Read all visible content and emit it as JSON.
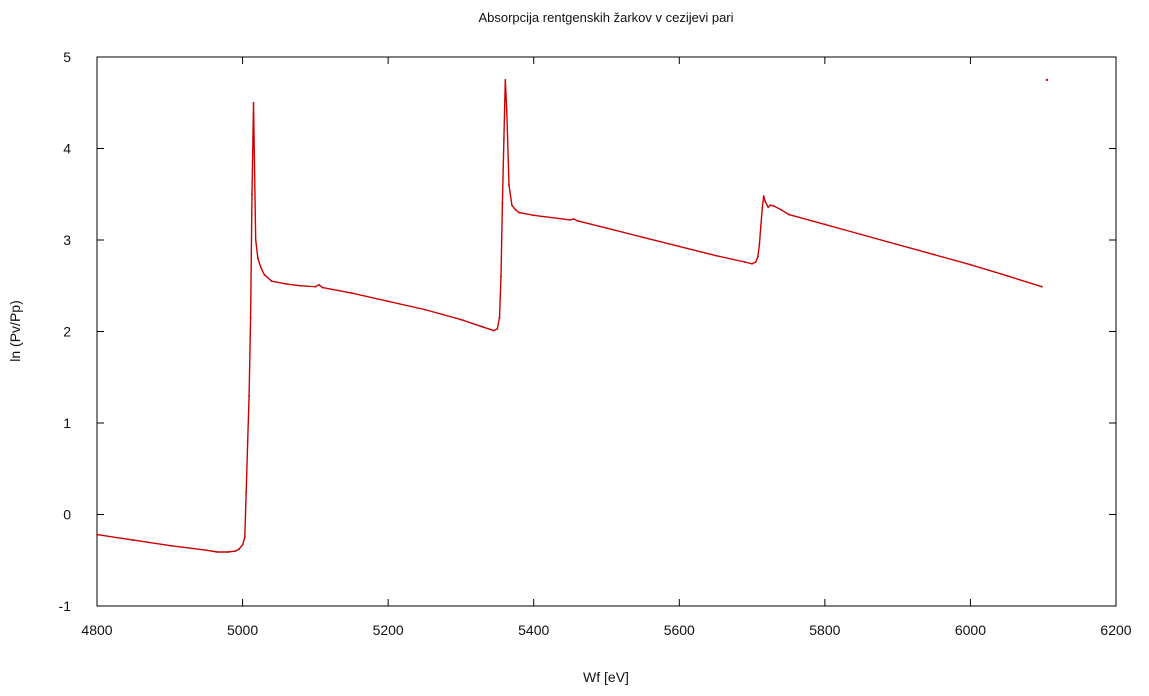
{
  "chart_data": {
    "type": "scatter",
    "title": "Absorpcija rentgenskih žarkov v cezijevi pari",
    "xlabel": "Wf [eV]",
    "ylabel": "ln (Pv/Pp)",
    "xlim": [
      4800,
      6200
    ],
    "ylim": [
      -1,
      5
    ],
    "xticks": [
      4800,
      5000,
      5200,
      5400,
      5600,
      5800,
      6000,
      6200
    ],
    "yticks": [
      -1,
      0,
      1,
      2,
      3,
      4,
      5
    ],
    "grid": false,
    "colors": {
      "series": "#cc0000",
      "axes": "#000000"
    },
    "series": [
      {
        "segments": [
          {
            "x": [
              4800,
              4850,
              4900,
              4950,
              4965,
              4980,
              4990,
              4995,
              5000,
              5003
            ],
            "y": [
              -0.22,
              -0.28,
              -0.34,
              -0.39,
              -0.41,
              -0.41,
              -0.4,
              -0.38,
              -0.33,
              -0.25
            ]
          },
          {
            "x": [
              5003,
              5005,
              5007,
              5009,
              5011,
              5013,
              5015,
              5018,
              5021,
              5025,
              5030
            ],
            "y": [
              -0.25,
              0.25,
              0.8,
              1.3,
              2.15,
              3.5,
              4.5,
              3.0,
              2.8,
              2.7,
              2.62
            ]
          },
          {
            "x": [
              5030,
              5040,
              5060,
              5080,
              5100,
              5105,
              5110,
              5150,
              5200,
              5250,
              5300,
              5330,
              5345,
              5350,
              5353
            ],
            "y": [
              2.62,
              2.55,
              2.52,
              2.5,
              2.49,
              2.51,
              2.48,
              2.42,
              2.33,
              2.24,
              2.13,
              2.05,
              2.01,
              2.03,
              2.15
            ]
          },
          {
            "x": [
              5353,
              5355,
              5357,
              5359,
              5361,
              5363,
              5366,
              5370,
              5375,
              5380
            ],
            "y": [
              2.15,
              2.6,
              3.4,
              4.1,
              4.75,
              4.4,
              3.6,
              3.38,
              3.33,
              3.3
            ]
          },
          {
            "x": [
              5380,
              5400,
              5450,
              5455,
              5460,
              5500,
              5550,
              5600,
              5650,
              5690,
              5700,
              5705,
              5708
            ],
            "y": [
              3.3,
              3.27,
              3.22,
              3.23,
              3.21,
              3.13,
              3.03,
              2.93,
              2.83,
              2.76,
              2.74,
              2.76,
              2.82
            ]
          },
          {
            "x": [
              5708,
              5710,
              5712,
              5714,
              5716,
              5718,
              5722,
              5725,
              5730,
              5740,
              5750
            ],
            "y": [
              2.82,
              2.95,
              3.15,
              3.35,
              3.48,
              3.42,
              3.36,
              3.38,
              3.37,
              3.33,
              3.28
            ]
          },
          {
            "x": [
              5750,
              5800,
              5850,
              5900,
              5950,
              6000,
              6050,
              6098
            ],
            "y": [
              3.28,
              3.17,
              3.06,
              2.95,
              2.84,
              2.73,
              2.61,
              2.49
            ]
          }
        ],
        "outliers": {
          "x": [
            6105
          ],
          "y": [
            4.75
          ]
        }
      }
    ]
  }
}
